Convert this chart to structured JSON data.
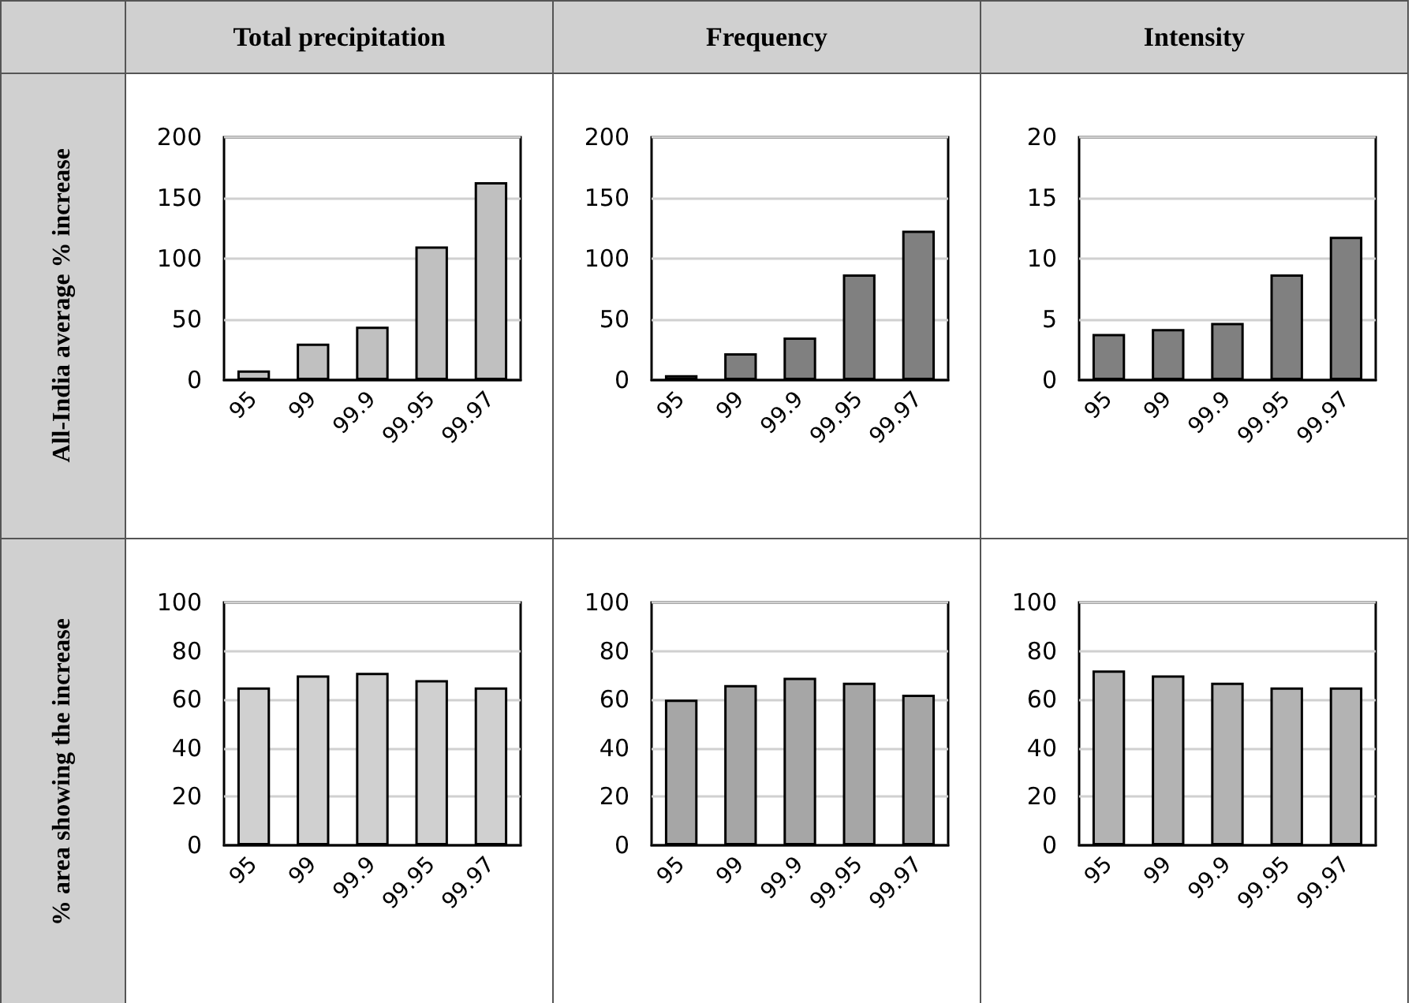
{
  "chart_data": [
    {
      "type": "bar",
      "title": "Total precipitation",
      "ylabel": "All-India average % increase",
      "categories": [
        "95",
        "99",
        "99.9",
        "99.95",
        "99.97"
      ],
      "values": [
        8,
        30,
        44,
        110,
        163
      ],
      "color": "#c0c0c0",
      "ylim": [
        0,
        200
      ],
      "yticks": [
        0,
        50,
        100,
        150,
        200
      ],
      "grid": "y"
    },
    {
      "type": "bar",
      "title": "Frequency",
      "categories": [
        "95",
        "99",
        "99.9",
        "99.95",
        "99.97"
      ],
      "values": [
        4,
        22,
        35,
        87,
        123
      ],
      "color": "#808080",
      "ylim": [
        0,
        200
      ],
      "yticks": [
        0,
        50,
        100,
        150,
        200
      ],
      "grid": "y"
    },
    {
      "type": "bar",
      "title": "Intensity",
      "categories": [
        "95",
        "99",
        "99.9",
        "99.95",
        "99.97"
      ],
      "values": [
        3.8,
        4.2,
        4.7,
        8.7,
        11.8
      ],
      "color": "#808080",
      "ylim": [
        0,
        20
      ],
      "yticks": [
        0,
        5,
        10,
        15,
        20
      ],
      "grid": "y"
    },
    {
      "type": "bar",
      "ylabel": "% area showing the increase",
      "categories": [
        "95",
        "99",
        "99.9",
        "99.95",
        "99.97"
      ],
      "values": [
        65,
        70,
        71,
        68,
        65
      ],
      "color": "#d0d0d0",
      "ylim": [
        0,
        100
      ],
      "yticks": [
        0,
        20,
        40,
        60,
        80,
        100
      ],
      "grid": "y"
    },
    {
      "type": "bar",
      "categories": [
        "95",
        "99",
        "99.9",
        "99.95",
        "99.97"
      ],
      "values": [
        60,
        66,
        69,
        67,
        62
      ],
      "color": "#a6a6a6",
      "ylim": [
        0,
        100
      ],
      "yticks": [
        0,
        20,
        40,
        60,
        80,
        100
      ],
      "grid": "y"
    },
    {
      "type": "bar",
      "categories": [
        "95",
        "99",
        "99.9",
        "99.95",
        "99.97"
      ],
      "values": [
        72,
        70,
        67,
        65,
        65
      ],
      "color": "#b3b3b3",
      "ylim": [
        0,
        100
      ],
      "yticks": [
        0,
        20,
        40,
        60,
        80,
        100
      ],
      "grid": "y"
    }
  ]
}
